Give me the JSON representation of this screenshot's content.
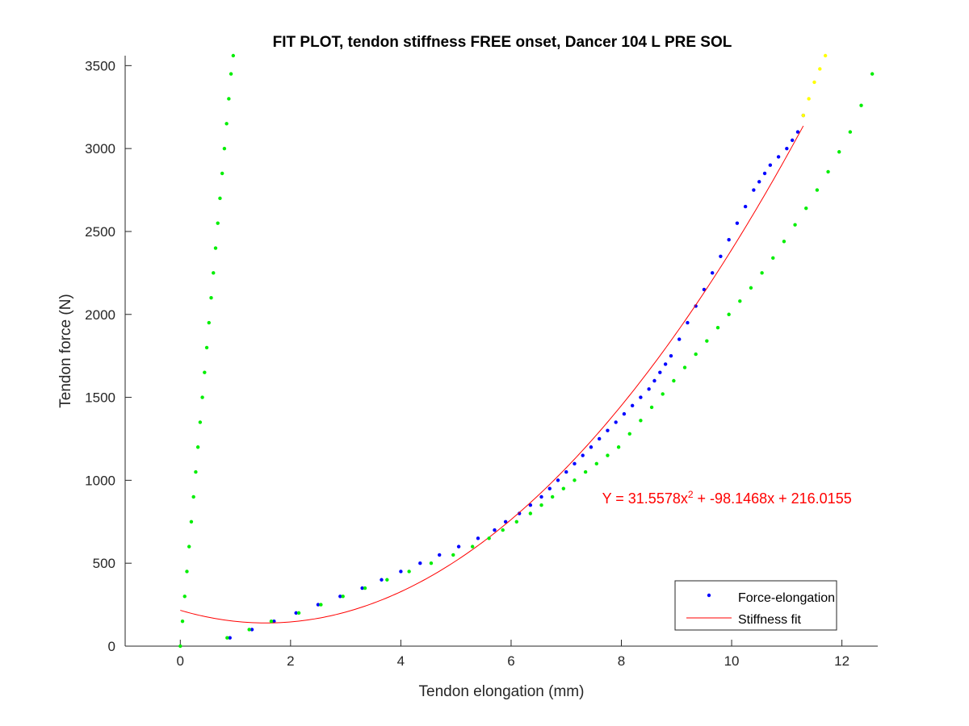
{
  "chart_data": {
    "type": "scatter",
    "title": "FIT PLOT, tendon stiffness FREE onset, Dancer 104 L PRE SOL",
    "xlabel": "Tendon elongation (mm)",
    "ylabel": "Tendon force (N)",
    "xlim": [
      -1,
      12.65
    ],
    "ylim": [
      0,
      3560
    ],
    "xticks": [
      0,
      2,
      4,
      6,
      8,
      10,
      12
    ],
    "yticks": [
      0,
      500,
      1000,
      1500,
      2000,
      2500,
      3000,
      3500
    ],
    "grid": false,
    "legend_position": "bottom-right",
    "annotation": {
      "prefix": "Y = 31.5578x",
      "superscript": "2",
      "suffix": " + -98.1468x + 216.0155",
      "color": "#ff0000",
      "anchor_x": 7.65,
      "anchor_y": 860
    },
    "series": [
      {
        "name": "Force-elongation",
        "kind": "dots",
        "color": "#0000ff",
        "x": [
          0.9,
          1.3,
          1.7,
          2.1,
          2.5,
          2.9,
          3.3,
          3.65,
          4.0,
          4.35,
          4.7,
          5.05,
          5.4,
          5.7,
          5.9,
          6.15,
          6.35,
          6.55,
          6.7,
          6.85,
          7.0,
          7.15,
          7.3,
          7.45,
          7.6,
          7.75,
          7.9,
          8.05,
          8.2,
          8.35,
          8.5,
          8.6,
          8.7,
          8.8,
          8.9,
          9.05,
          9.2,
          9.35,
          9.5,
          9.65,
          9.8,
          9.95,
          10.1,
          10.25,
          10.4,
          10.5,
          10.6,
          10.7,
          10.85,
          11.0,
          11.1,
          11.2,
          11.3
        ],
        "y": [
          50,
          100,
          150,
          200,
          250,
          300,
          350,
          400,
          450,
          500,
          550,
          600,
          650,
          700,
          750,
          800,
          850,
          900,
          950,
          1000,
          1050,
          1100,
          1150,
          1200,
          1250,
          1300,
          1350,
          1400,
          1450,
          1500,
          1550,
          1600,
          1650,
          1700,
          1750,
          1850,
          1950,
          2050,
          2150,
          2250,
          2350,
          2450,
          2550,
          2650,
          2750,
          2800,
          2850,
          2900,
          2950,
          3000,
          3050,
          3100,
          3200
        ]
      },
      {
        "name": "Stiffness fit",
        "kind": "curve",
        "color": "#ff0000",
        "coefficients": [
          31.5578,
          -98.1468,
          216.0155
        ],
        "x_range": [
          0,
          11.3
        ]
      },
      {
        "kind": "dots",
        "color": "#00ee00",
        "x": [
          0.85,
          1.25,
          1.65,
          2.15,
          2.55,
          2.95,
          3.35,
          3.75,
          4.15,
          4.55,
          4.95,
          5.3,
          5.6,
          5.85,
          6.1,
          6.35,
          6.55,
          6.75,
          6.95,
          7.15,
          7.35,
          7.55,
          7.75,
          7.95,
          8.15,
          8.35,
          8.55,
          8.75,
          8.95,
          9.15,
          9.35,
          9.55,
          9.75,
          9.95,
          10.15,
          10.35,
          10.55,
          10.75,
          10.95,
          11.15,
          11.35,
          11.55,
          11.75,
          11.95,
          12.15,
          12.35,
          12.55
        ],
        "y": [
          50,
          100,
          150,
          200,
          250,
          300,
          350,
          400,
          450,
          500,
          550,
          600,
          650,
          700,
          750,
          800,
          850,
          900,
          950,
          1000,
          1050,
          1100,
          1150,
          1200,
          1280,
          1360,
          1440,
          1520,
          1600,
          1680,
          1760,
          1840,
          1920,
          2000,
          2080,
          2160,
          2250,
          2340,
          2440,
          2540,
          2640,
          2750,
          2860,
          2980,
          3100,
          3260,
          3450
        ]
      },
      {
        "kind": "dots",
        "color": "#00ee00",
        "x": [
          0.0,
          0.04,
          0.08,
          0.12,
          0.16,
          0.2,
          0.24,
          0.28,
          0.32,
          0.36,
          0.4,
          0.44,
          0.48,
          0.52,
          0.56,
          0.6,
          0.64,
          0.68,
          0.72,
          0.76,
          0.8,
          0.84,
          0.88,
          0.92,
          0.96
        ],
        "y": [
          0,
          150,
          300,
          450,
          600,
          750,
          900,
          1050,
          1200,
          1350,
          1500,
          1650,
          1800,
          1950,
          2100,
          2250,
          2400,
          2550,
          2700,
          2850,
          3000,
          3150,
          3300,
          3450,
          3560
        ]
      },
      {
        "kind": "dots",
        "color": "#ffff00",
        "x": [
          11.3,
          11.4,
          11.5,
          11.6,
          11.7
        ],
        "y": [
          3200,
          3300,
          3400,
          3480,
          3560
        ]
      }
    ]
  }
}
